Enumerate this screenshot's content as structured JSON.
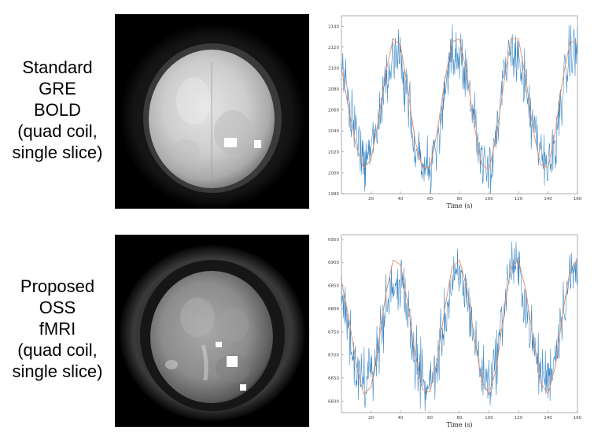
{
  "rows": [
    {
      "label_lines": [
        "Standard",
        "GRE",
        "BOLD",
        "(quad coil,",
        "single slice)"
      ]
    },
    {
      "label_lines": [
        "Proposed",
        "OSS",
        "fMRI",
        "(quad coil,",
        "single slice)"
      ]
    }
  ],
  "chart_data": [
    {
      "type": "line",
      "title": "",
      "xlabel": "Time (s)",
      "ylabel": "",
      "xlim": [
        0,
        160
      ],
      "ylim": [
        1980,
        2150
      ],
      "xticks": [
        20,
        40,
        60,
        80,
        100,
        120,
        140,
        160
      ],
      "yticks": [
        1980,
        2000,
        2020,
        2040,
        2060,
        2080,
        2100,
        2120,
        2140
      ],
      "grid": false,
      "series": [
        {
          "name": "",
          "color": "#2f7fc1",
          "kind": "measured signal",
          "x": [
            0,
            5,
            10,
            15,
            20,
            25,
            30,
            35,
            40,
            45,
            50,
            55,
            60,
            65,
            70,
            75,
            80,
            85,
            90,
            95,
            100,
            105,
            110,
            115,
            120,
            125,
            130,
            135,
            140,
            145,
            150,
            155,
            160
          ],
          "values": [
            2105,
            2065,
            2035,
            2012,
            2018,
            2050,
            2090,
            2112,
            2105,
            2070,
            2030,
            2008,
            2000,
            2025,
            2075,
            2108,
            2115,
            2095,
            2050,
            2015,
            2008,
            2035,
            2085,
            2115,
            2115,
            2080,
            2040,
            2015,
            2005,
            2030,
            2080,
            2110,
            2120
          ]
        },
        {
          "name": "",
          "color": "#e58a6a",
          "kind": "model fit",
          "x": [
            0,
            5,
            10,
            15,
            20,
            25,
            30,
            35,
            40,
            45,
            50,
            55,
            60,
            65,
            70,
            75,
            80,
            85,
            90,
            95,
            100,
            105,
            110,
            115,
            120,
            125,
            130,
            135,
            140,
            145,
            150,
            155,
            160
          ],
          "values": [
            2100,
            2060,
            2025,
            2005,
            2012,
            2050,
            2095,
            2128,
            2122,
            2080,
            2030,
            2005,
            2005,
            2040,
            2088,
            2125,
            2128,
            2095,
            2045,
            2008,
            2003,
            2035,
            2085,
            2128,
            2128,
            2090,
            2040,
            2008,
            2005,
            2040,
            2090,
            2125,
            2125
          ]
        }
      ]
    },
    {
      "type": "line",
      "title": "",
      "xlabel": "Time (s)",
      "ylabel": "",
      "xlim": [
        0,
        160
      ],
      "ylim": [
        6575,
        6960
      ],
      "xticks": [
        20,
        40,
        60,
        80,
        100,
        120,
        140,
        160
      ],
      "yticks": [
        6600,
        6650,
        6700,
        6750,
        6800,
        6850,
        6900,
        6950
      ],
      "grid": false,
      "series": [
        {
          "name": "",
          "color": "#2f7fc1",
          "kind": "measured signal",
          "x": [
            0,
            5,
            10,
            15,
            20,
            25,
            30,
            35,
            40,
            45,
            50,
            55,
            60,
            65,
            70,
            75,
            80,
            85,
            90,
            95,
            100,
            105,
            110,
            115,
            120,
            125,
            130,
            135,
            140,
            145,
            150,
            155,
            160
          ],
          "values": [
            6830,
            6760,
            6680,
            6640,
            6650,
            6720,
            6800,
            6860,
            6850,
            6790,
            6700,
            6640,
            6630,
            6680,
            6780,
            6850,
            6870,
            6830,
            6740,
            6660,
            6640,
            6690,
            6800,
            6900,
            6880,
            6810,
            6720,
            6660,
            6650,
            6700,
            6800,
            6870,
            6880
          ]
        },
        {
          "name": "",
          "color": "#e58a6a",
          "kind": "model fit",
          "x": [
            0,
            5,
            10,
            15,
            20,
            25,
            30,
            35,
            40,
            45,
            50,
            55,
            60,
            65,
            70,
            75,
            80,
            85,
            90,
            95,
            100,
            105,
            110,
            115,
            120,
            125,
            130,
            135,
            140,
            145,
            150,
            155,
            160
          ],
          "values": [
            6860,
            6780,
            6680,
            6615,
            6630,
            6720,
            6830,
            6905,
            6895,
            6810,
            6700,
            6625,
            6620,
            6690,
            6800,
            6890,
            6905,
            6845,
            6740,
            6645,
            6615,
            6670,
            6790,
            6890,
            6905,
            6840,
            6730,
            6640,
            6615,
            6675,
            6790,
            6885,
            6905
          ]
        }
      ]
    }
  ]
}
